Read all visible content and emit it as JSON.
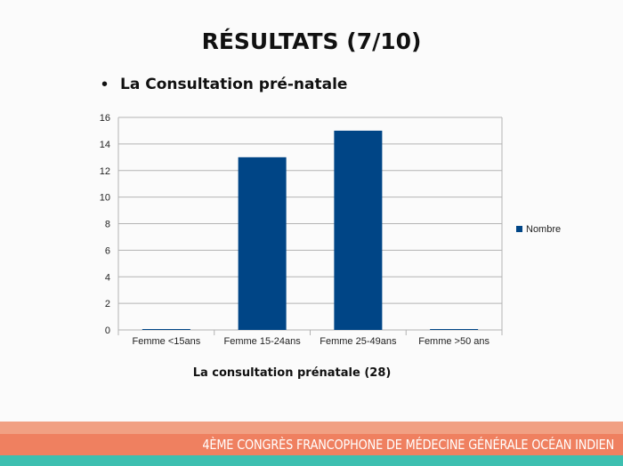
{
  "slide": {
    "title": "RÉSULTATS (7/10)",
    "bullet": "La Consultation pré-natale",
    "caption": "La consultation prénatale (28)",
    "footer": "4ÈME CONGRÈS FRANCOPHONE DE MÉDECINE GÉNÉRALE OCÉAN INDIEN"
  },
  "chart_data": {
    "type": "bar",
    "categories": [
      "Femme <15ans",
      "Femme 15-24ans",
      "Femme 25-49ans",
      "Femme >50 ans"
    ],
    "series": [
      {
        "name": "Nombre",
        "values": [
          0,
          13,
          15,
          0
        ],
        "color": "#004586"
      }
    ],
    "yticks": [
      0,
      2,
      4,
      6,
      8,
      10,
      12,
      14,
      16
    ],
    "ylim": [
      0,
      16
    ],
    "grid": true,
    "legend_position": "right"
  },
  "colors": {
    "bar": "#004586",
    "footer_light": "#f1a083",
    "footer_dark": "#ef8060",
    "footer_teal": "#3dbfb0"
  }
}
